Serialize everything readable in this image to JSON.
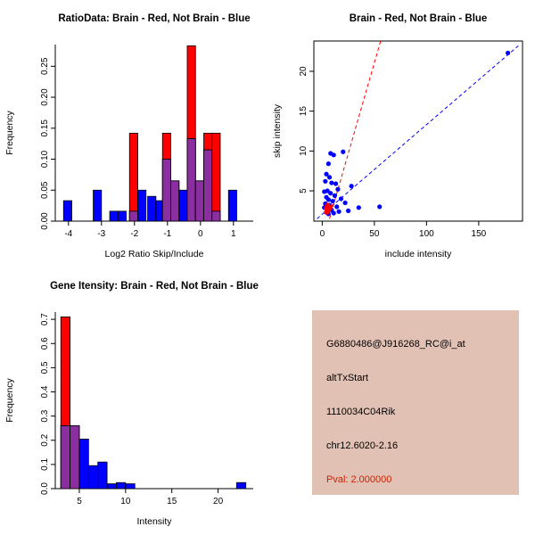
{
  "colors": {
    "red": "#FF0000",
    "blue": "#0000FF",
    "overlap": "#8B2FA0",
    "info_bg": "#E2C1B5",
    "pval_red": "#CC2200",
    "axis": "#000000"
  },
  "info_box": {
    "probe_id": "G6880486@J916268_RC@i_at",
    "event_type": "altTxStart",
    "gene": "1110034C04Rik",
    "location": "chr12.6020-2.16",
    "pval": "Pval: 2.000000"
  },
  "chart_data": [
    {
      "type": "bar",
      "title": "RatioData: Brain - Red, Not Brain - Blue",
      "xlabel": "Log2 Ratio Skip/Include",
      "ylabel": "Frequency",
      "xlim": [
        -4.4,
        1.6
      ],
      "ylim": [
        0,
        0.285
      ],
      "xticks": [
        "-4",
        "-3",
        "-2",
        "-1",
        "0",
        "1"
      ],
      "yticks": [
        "0.00",
        "0.05",
        "0.10",
        "0.15",
        "0.20",
        "0.25"
      ],
      "grid": false,
      "box": false,
      "bin_width": 0.25,
      "bars": [
        {
          "x": -4.15,
          "red": 0,
          "blue": 0.033
        },
        {
          "x": -3.25,
          "red": 0,
          "blue": 0.05
        },
        {
          "x": -2.75,
          "red": 0,
          "blue": 0.016
        },
        {
          "x": -2.5,
          "red": 0,
          "blue": 0.016
        },
        {
          "x": -2.15,
          "red": 0.142,
          "blue": 0.016
        },
        {
          "x": -1.9,
          "red": 0,
          "blue": 0.05
        },
        {
          "x": -1.6,
          "red": 0,
          "blue": 0.04
        },
        {
          "x": -1.35,
          "red": 0,
          "blue": 0.033
        },
        {
          "x": -1.15,
          "red": 0.142,
          "blue": 0.1
        },
        {
          "x": -0.9,
          "red": 0.065,
          "blue": 0.065
        },
        {
          "x": -0.65,
          "red": 0,
          "blue": 0.05
        },
        {
          "x": -0.4,
          "red": 0.283,
          "blue": 0.133
        },
        {
          "x": -0.15,
          "red": 0.065,
          "blue": 0.065
        },
        {
          "x": 0.1,
          "red": 0.142,
          "blue": 0.115
        },
        {
          "x": 0.35,
          "red": 0.142,
          "blue": 0.016
        },
        {
          "x": 0.85,
          "red": 0,
          "blue": 0.05
        }
      ]
    },
    {
      "type": "scatter",
      "title": "Brain - Red, Not Brain - Blue",
      "xlabel": "include intensity",
      "ylabel": "skip intensity",
      "xlim": [
        -8,
        192
      ],
      "ylim": [
        1.2,
        23.8
      ],
      "xticks": [
        "0",
        "50",
        "100",
        "150"
      ],
      "yticks": [
        "5",
        "10",
        "15",
        "20"
      ],
      "grid": false,
      "box": true,
      "series": [
        {
          "name": "Not Brain",
          "color": "blue",
          "r": 2.6,
          "points": [
            [
              178,
              22.3
            ],
            [
              8,
              9.7
            ],
            [
              11,
              9.5
            ],
            [
              20,
              9.9
            ],
            [
              6,
              8.4
            ],
            [
              4,
              7.1
            ],
            [
              7,
              6.7
            ],
            [
              3,
              6.2
            ],
            [
              9,
              6.0
            ],
            [
              13,
              5.9
            ],
            [
              28,
              5.6
            ],
            [
              15,
              5.2
            ],
            [
              5,
              5.0
            ],
            [
              2,
              4.9
            ],
            [
              8,
              4.7
            ],
            [
              12,
              4.4
            ],
            [
              4,
              4.2
            ],
            [
              18,
              4.0
            ],
            [
              6,
              3.9
            ],
            [
              10,
              3.7
            ],
            [
              22,
              3.5
            ],
            [
              3,
              3.4
            ],
            [
              7,
              3.2
            ],
            [
              14,
              3.0
            ],
            [
              55,
              3.0
            ],
            [
              35,
              2.9
            ],
            [
              2,
              2.9
            ],
            [
              5,
              2.8
            ],
            [
              9,
              2.6
            ],
            [
              25,
              2.5
            ],
            [
              16,
              2.4
            ],
            [
              4,
              2.3
            ],
            [
              11,
              2.2
            ],
            [
              6,
              2.1
            ]
          ]
        },
        {
          "name": "Brain",
          "color": "red",
          "r": 1.8,
          "points": [
            [
              3,
              2.3
            ],
            [
              4,
              2.5
            ],
            [
              5,
              2.7
            ],
            [
              6,
              2.9
            ],
            [
              4,
              3.1
            ],
            [
              5,
              3.3
            ],
            [
              7,
              3.0
            ],
            [
              3,
              2.8
            ],
            [
              6,
              2.4
            ],
            [
              8,
              2.8
            ],
            [
              5,
              2.2
            ],
            [
              4,
              2.6
            ],
            [
              7,
              2.6
            ],
            [
              6,
              3.2
            ],
            [
              9,
              3.1
            ]
          ]
        }
      ],
      "lines": [
        {
          "color": "red",
          "dash": true,
          "from": [
            7,
            1.5
          ],
          "to": [
            56,
            23.8
          ]
        },
        {
          "color": "blue",
          "dash": true,
          "from": [
            -5,
            1.5
          ],
          "to": [
            188,
            23.2
          ]
        }
      ]
    },
    {
      "type": "bar",
      "title": "Gene Itensity: Brain - Red, Not Brain - Blue",
      "xlabel": "Intensity",
      "ylabel": "Frequency",
      "xlim": [
        2.4,
        23.8
      ],
      "ylim": [
        0,
        0.73
      ],
      "xticks": [
        "5",
        "10",
        "15",
        "20"
      ],
      "yticks": [
        "0.0",
        "0.1",
        "0.2",
        "0.3",
        "0.4",
        "0.5",
        "0.6",
        "0.7"
      ],
      "grid": false,
      "box": false,
      "bin_width": 1,
      "bars": [
        {
          "x": 3,
          "red": 0.71,
          "blue": 0.26
        },
        {
          "x": 4,
          "red": 0.26,
          "blue": 0.26
        },
        {
          "x": 5,
          "red": 0,
          "blue": 0.205
        },
        {
          "x": 6,
          "red": 0,
          "blue": 0.095
        },
        {
          "x": 7,
          "red": 0,
          "blue": 0.11
        },
        {
          "x": 8,
          "red": 0,
          "blue": 0.02
        },
        {
          "x": 9,
          "red": 0,
          "blue": 0.025
        },
        {
          "x": 10,
          "red": 0,
          "blue": 0.02
        },
        {
          "x": 22,
          "red": 0,
          "blue": 0.025
        }
      ]
    }
  ]
}
